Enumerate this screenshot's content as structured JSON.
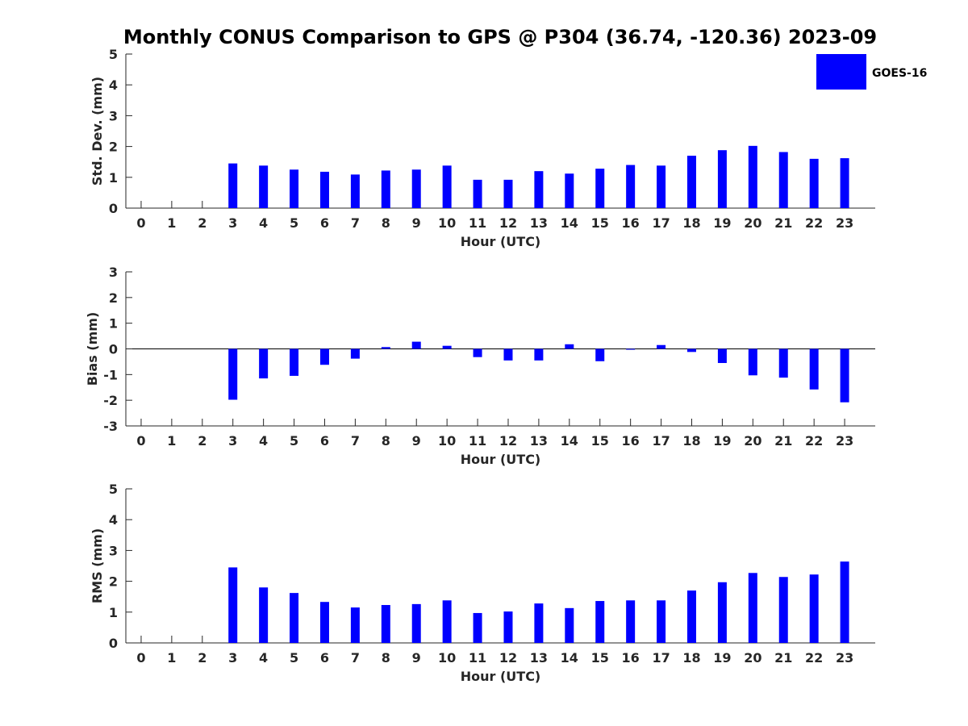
{
  "title": "Monthly CONUS Comparison to GPS @ P304 (36.74, -120.36) 2023-09",
  "legend": {
    "label": "GOES-16",
    "color": "#0000ff",
    "placement": "top-right"
  },
  "chart_data": [
    {
      "type": "bar",
      "title": "",
      "xlabel": "Hour (UTC)",
      "ylabel": "Std. Dev. (mm)",
      "ylim": [
        0,
        5
      ],
      "yticks": [
        0,
        1,
        2,
        3,
        4,
        5
      ],
      "categories": [
        "0",
        "1",
        "2",
        "3",
        "4",
        "5",
        "6",
        "7",
        "8",
        "9",
        "10",
        "11",
        "12",
        "13",
        "14",
        "15",
        "16",
        "17",
        "18",
        "19",
        "20",
        "21",
        "22",
        "23"
      ],
      "series": [
        {
          "name": "GOES-16",
          "values": [
            null,
            null,
            null,
            1.45,
            1.38,
            1.25,
            1.18,
            1.09,
            1.22,
            1.25,
            1.38,
            0.92,
            0.92,
            1.2,
            1.12,
            1.28,
            1.4,
            1.38,
            1.7,
            1.88,
            2.02,
            1.82,
            1.6,
            1.62
          ]
        }
      ],
      "grid": false
    },
    {
      "type": "bar",
      "title": "",
      "xlabel": "Hour (UTC)",
      "ylabel": "Bias (mm)",
      "ylim": [
        -3,
        3
      ],
      "yticks": [
        -3,
        -2,
        -1,
        0,
        1,
        2,
        3
      ],
      "categories": [
        "0",
        "1",
        "2",
        "3",
        "4",
        "5",
        "6",
        "7",
        "8",
        "9",
        "10",
        "11",
        "12",
        "13",
        "14",
        "15",
        "16",
        "17",
        "18",
        "19",
        "20",
        "21",
        "22",
        "23"
      ],
      "series": [
        {
          "name": "GOES-16",
          "values": [
            null,
            null,
            null,
            -1.98,
            -1.15,
            -1.05,
            -0.62,
            -0.38,
            0.07,
            0.28,
            0.12,
            -0.32,
            -0.45,
            -0.45,
            0.18,
            -0.48,
            -0.02,
            0.15,
            -0.12,
            -0.55,
            -1.03,
            -1.12,
            -1.58,
            -2.08
          ]
        }
      ],
      "grid": false
    },
    {
      "type": "bar",
      "title": "",
      "xlabel": "Hour (UTC)",
      "ylabel": "RMS (mm)",
      "ylim": [
        0,
        5
      ],
      "yticks": [
        0,
        1,
        2,
        3,
        4,
        5
      ],
      "categories": [
        "0",
        "1",
        "2",
        "3",
        "4",
        "5",
        "6",
        "7",
        "8",
        "9",
        "10",
        "11",
        "12",
        "13",
        "14",
        "15",
        "16",
        "17",
        "18",
        "19",
        "20",
        "21",
        "22",
        "23"
      ],
      "series": [
        {
          "name": "GOES-16",
          "values": [
            null,
            null,
            null,
            2.45,
            1.8,
            1.62,
            1.33,
            1.15,
            1.23,
            1.26,
            1.38,
            0.97,
            1.02,
            1.28,
            1.13,
            1.36,
            1.38,
            1.38,
            1.7,
            1.97,
            2.27,
            2.14,
            2.22,
            2.64
          ]
        }
      ],
      "grid": false
    }
  ]
}
